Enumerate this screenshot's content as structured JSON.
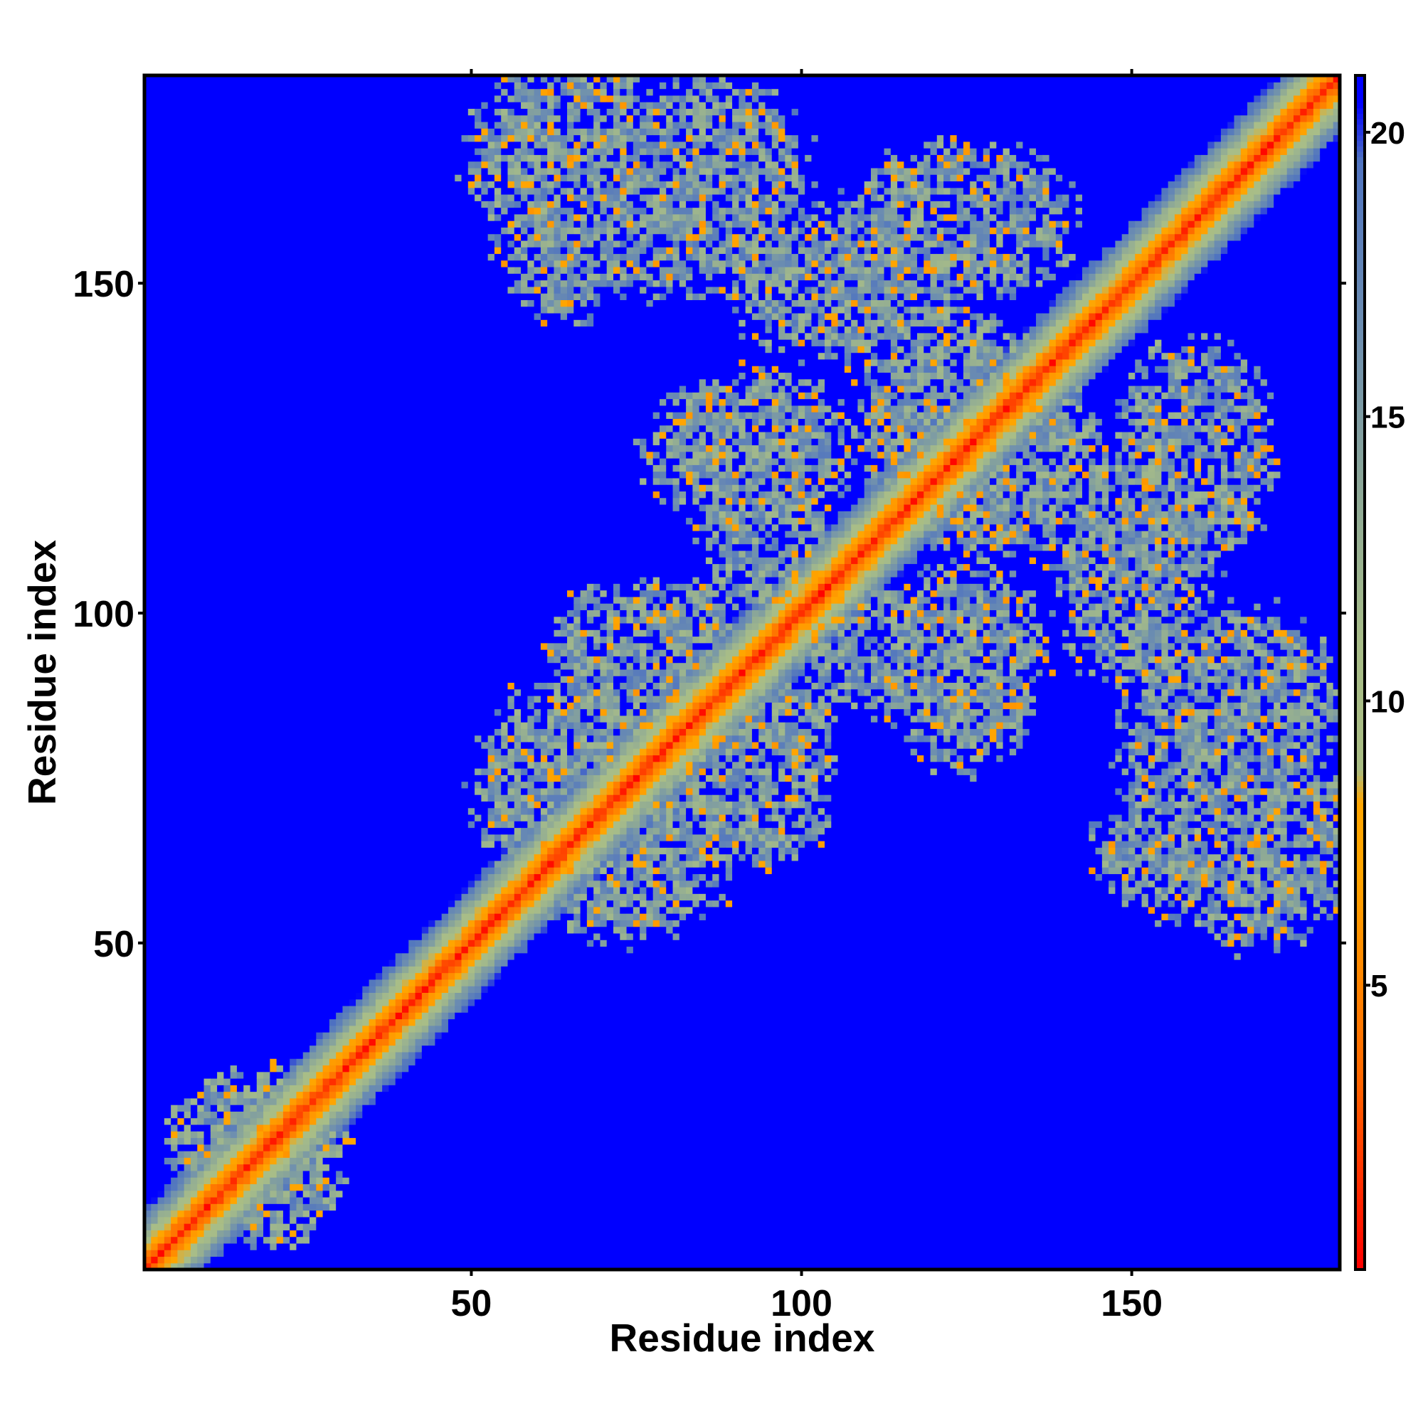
{
  "chart_data": {
    "type": "heatmap",
    "title": "",
    "xlabel": "Residue index",
    "ylabel": "Residue index",
    "n_residues": 181,
    "xlim": [
      1,
      181
    ],
    "ylim": [
      1,
      181
    ],
    "x_ticks": [
      50,
      100,
      150
    ],
    "y_ticks": [
      50,
      100,
      150
    ],
    "colorbar": {
      "range": [
        0,
        21
      ],
      "ticks": [
        5,
        10,
        15,
        20
      ],
      "stops": [
        {
          "value": 0,
          "color": "#ff0000"
        },
        {
          "value": 3.5,
          "color": "#ff6a00"
        },
        {
          "value": 7,
          "color": "#ffa500"
        },
        {
          "value": 8.2,
          "color": "#ffa500"
        },
        {
          "value": 8.8,
          "color": "#a9bd83"
        },
        {
          "value": 11,
          "color": "#a8bd88"
        },
        {
          "value": 13.5,
          "color": "#8faa95"
        },
        {
          "value": 16.5,
          "color": "#6d8eb0"
        },
        {
          "value": 19.5,
          "color": "#5074c0"
        },
        {
          "value": 20.5,
          "color": "#0000ff"
        },
        {
          "value": 21,
          "color": "#0000ff"
        }
      ]
    },
    "background_value": 21,
    "diagonal_band": {
      "width_residues": 4.5,
      "saturation_distance": 20
    },
    "contact_regions": [
      {
        "x": [
          51,
          79
        ],
        "y": [
          158,
          181
        ]
      },
      {
        "x": [
          57,
          100
        ],
        "y": [
          150,
          175
        ]
      },
      {
        "x": [
          90,
          126
        ],
        "y": [
          140,
          160
        ]
      },
      {
        "x": [
          110,
          140
        ],
        "y": [
          150,
          170
        ]
      },
      {
        "x": [
          78,
          106
        ],
        "y": [
          115,
          135
        ]
      },
      {
        "x": [
          110,
          135
        ],
        "y": [
          115,
          145
        ]
      },
      {
        "x": [
          63,
          77
        ],
        "y": [
          88,
          102
        ]
      },
      {
        "x": [
          73,
          88
        ],
        "y": [
          96,
          104
        ]
      },
      {
        "x": [
          55,
          98
        ],
        "y": [
          67,
          93
        ]
      },
      {
        "x": [
          60,
          85
        ],
        "y": [
          52,
          70
        ]
      },
      {
        "x": [
          101,
          128
        ],
        "y": [
          86,
          102
        ]
      },
      {
        "x": [
          140,
          162
        ],
        "y": [
          98,
          122
        ]
      },
      {
        "x": [
          150,
          180
        ],
        "y": [
          72,
          100
        ]
      },
      {
        "x": [
          146,
          180
        ],
        "y": [
          55,
          72
        ]
      },
      {
        "x": [
          5,
          30
        ],
        "y": [
          6,
          30
        ]
      }
    ]
  }
}
